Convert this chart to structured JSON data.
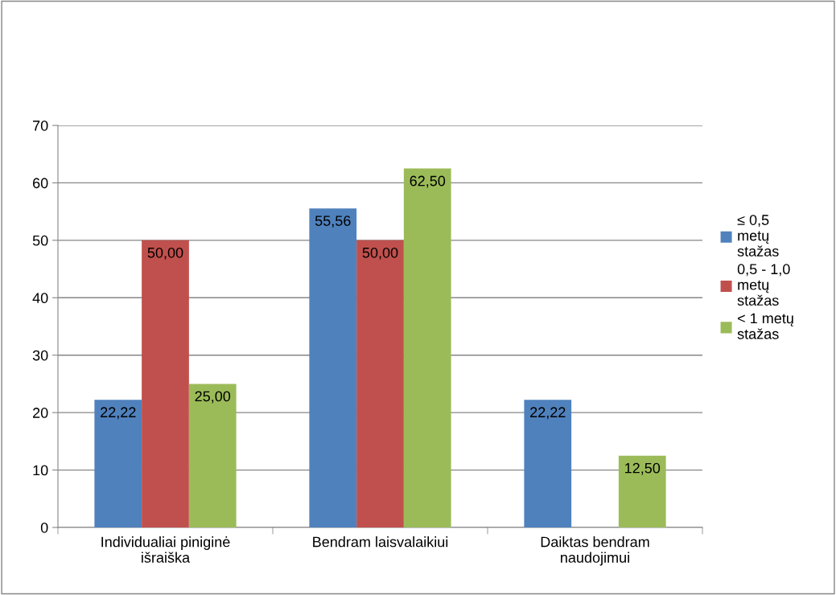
{
  "chart_data": {
    "type": "bar",
    "categories": [
      "Individualiai piniginė išraiška",
      "Bendram laisvalaikiui",
      "Daiktas bendram naudojimui"
    ],
    "series": [
      {
        "name": "≤ 0,5 metų stažas",
        "color": "#4f81bd",
        "values": [
          22.22,
          55.56,
          22.22
        ],
        "value_labels": [
          "22,22",
          "55,56",
          "22,22"
        ]
      },
      {
        "name": "0,5 - 1,0 metų stažas",
        "color": "#c0504d",
        "values": [
          50.0,
          50.0,
          null
        ],
        "value_labels": [
          "50,00",
          "50,00",
          null
        ]
      },
      {
        "name": "< 1 metų stažas",
        "color": "#9bbb59",
        "values": [
          25.0,
          62.5,
          12.5
        ],
        "value_labels": [
          "25,00",
          "62,50",
          "12,50"
        ]
      }
    ],
    "ylim": [
      0,
      70
    ],
    "yticks": [
      0,
      10,
      20,
      30,
      40,
      50,
      60,
      70
    ],
    "grid": "y",
    "legend": "right"
  }
}
